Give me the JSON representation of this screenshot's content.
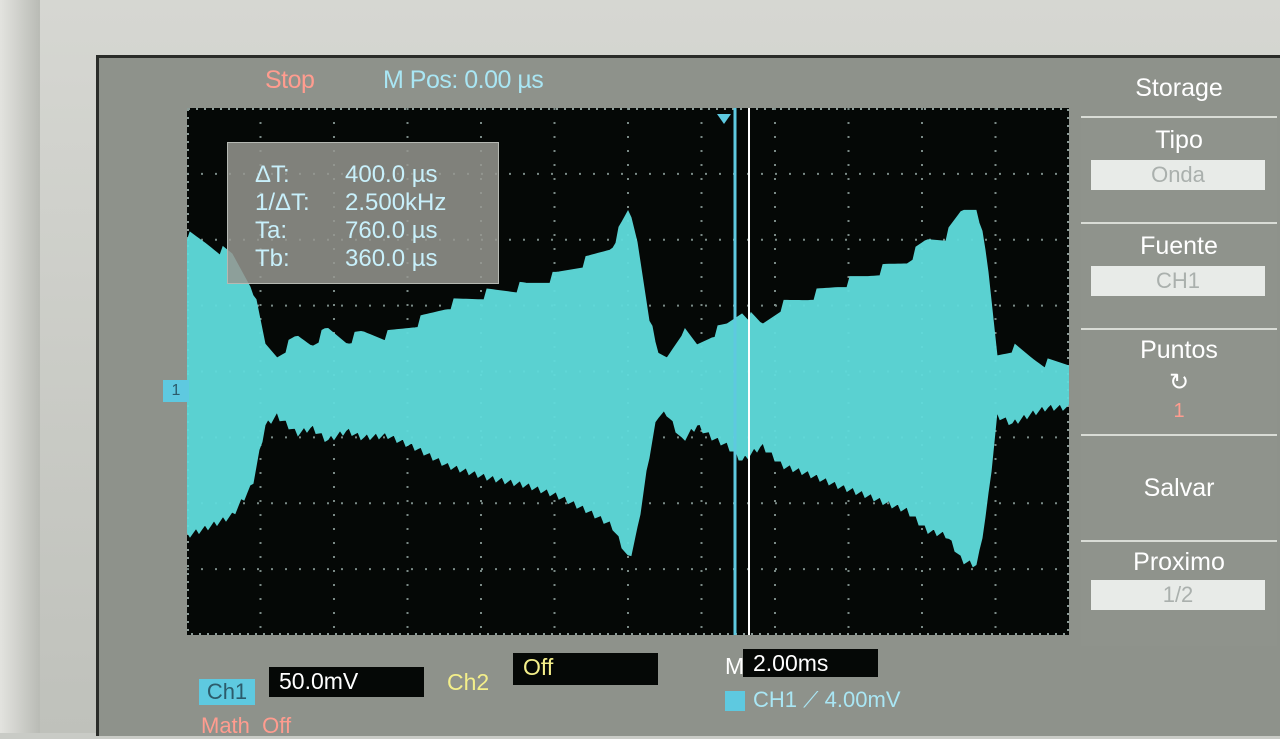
{
  "status": {
    "state": "Stop",
    "mpos_label": "M Pos:",
    "mpos_value": "0.00 µs"
  },
  "cursor_readout": {
    "rows": [
      {
        "label": "ΔT:",
        "value": "400.0 µs"
      },
      {
        "label": "1/ΔT:",
        "value": "2.500kHz"
      },
      {
        "label": "Ta:",
        "value": "760.0 µs"
      },
      {
        "label": "Tb:",
        "value": "360.0 µs"
      }
    ]
  },
  "menu": {
    "title": "Storage",
    "tipo": {
      "label": "Tipo",
      "value": "Onda"
    },
    "fuente": {
      "label": "Fuente",
      "value": "CH1"
    },
    "puntos": {
      "label": "Puntos",
      "icon": "↻",
      "value": "1"
    },
    "salvar": {
      "label": "Salvar"
    },
    "proximo": {
      "label": "Proximo",
      "value": "1/2"
    }
  },
  "bottom": {
    "ch1": {
      "label": "Ch1",
      "value": "50.0mV"
    },
    "ch2": {
      "label": "Ch2",
      "value": "Off"
    },
    "timebase": {
      "label": "M",
      "value": "2.00ms"
    },
    "trigger": {
      "channel": "CH1",
      "slope": "⟋",
      "level": "4.00mV"
    },
    "math": {
      "label": "Math",
      "value": "Off"
    }
  },
  "channel_marker": "1",
  "colors": {
    "trace": "#5fdcdc",
    "background": "#050806",
    "cursor": "#5ec9e0",
    "stop": "#ff9c8f",
    "ch2": "#f4ef8a"
  }
}
